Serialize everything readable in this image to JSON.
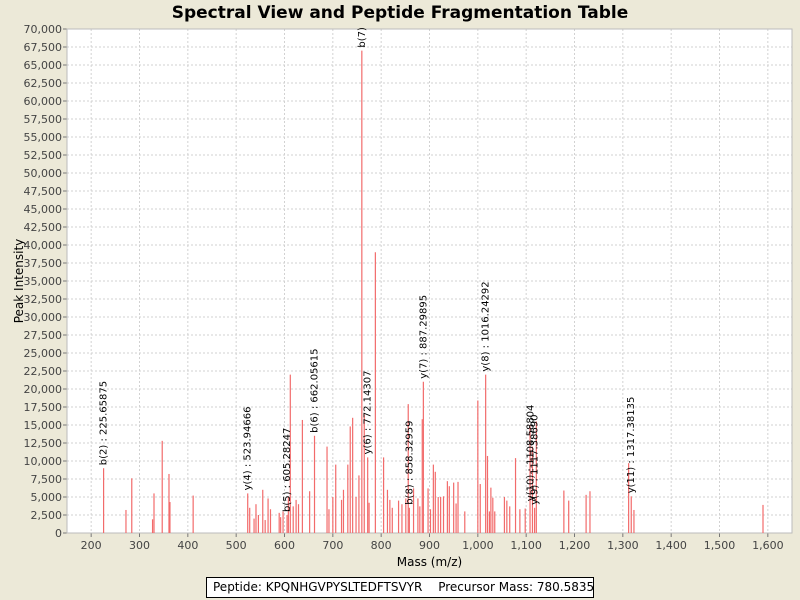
{
  "chart_data": {
    "type": "bar",
    "title": "Spectral View and Peptide Fragmentation Table",
    "xlabel": "Mass (m/z)",
    "ylabel": "Peak Intensity",
    "xlim": [
      150,
      1650
    ],
    "ylim": [
      0,
      70000
    ],
    "x_ticks": [
      200,
      300,
      400,
      500,
      600,
      700,
      800,
      900,
      1000,
      1100,
      1200,
      1300,
      1400,
      1500,
      1600
    ],
    "x_tick_labels": [
      "200",
      "300",
      "400",
      "500",
      "600",
      "700",
      "800",
      "900",
      "1,000",
      "1,100",
      "1,200",
      "1,300",
      "1,400",
      "1,500",
      "1,600"
    ],
    "y_ticks": [
      0,
      2500,
      5000,
      7500,
      10000,
      12500,
      15000,
      17500,
      20000,
      22500,
      25000,
      27500,
      30000,
      32500,
      35000,
      37500,
      40000,
      42500,
      45000,
      47500,
      50000,
      52500,
      55000,
      57500,
      60000,
      62500,
      65000,
      67500,
      70000
    ],
    "y_tick_labels": [
      "0",
      "2,500",
      "5,000",
      "7,500",
      "10,000",
      "12,500",
      "15,000",
      "17,500",
      "20,000",
      "22,500",
      "25,000",
      "27,500",
      "30,000",
      "32,500",
      "35,000",
      "37,500",
      "40,000",
      "42,500",
      "45,000",
      "47,500",
      "50,000",
      "52,500",
      "55,000",
      "57,500",
      "60,000",
      "62,500",
      "65,000",
      "67,500",
      "70,000"
    ],
    "grid": true,
    "peaks": [
      [
        225.7,
        9000
      ],
      [
        272,
        3200
      ],
      [
        284,
        7600
      ],
      [
        327,
        1900
      ],
      [
        330,
        5500
      ],
      [
        347,
        12800
      ],
      [
        361,
        8200
      ],
      [
        363,
        4300
      ],
      [
        411,
        5200
      ],
      [
        523.9,
        5500
      ],
      [
        528,
        3500
      ],
      [
        537,
        2000
      ],
      [
        541,
        4000
      ],
      [
        546,
        2500
      ],
      [
        555,
        6000
      ],
      [
        560,
        1800
      ],
      [
        566,
        4800
      ],
      [
        571,
        3300
      ],
      [
        589,
        2800
      ],
      [
        592,
        2200
      ],
      [
        597,
        3000
      ],
      [
        605.3,
        2500
      ],
      [
        608,
        5000
      ],
      [
        612,
        22000
      ],
      [
        618,
        3700
      ],
      [
        624,
        4600
      ],
      [
        629,
        4000
      ],
      [
        637,
        15700
      ],
      [
        652,
        5800
      ],
      [
        662.1,
        13500
      ],
      [
        688,
        12000
      ],
      [
        692,
        3300
      ],
      [
        700,
        5000
      ],
      [
        706,
        9500
      ],
      [
        718,
        4600
      ],
      [
        722,
        6000
      ],
      [
        731,
        9500
      ],
      [
        736,
        14800
      ],
      [
        741,
        16000
      ],
      [
        748,
        5000
      ],
      [
        754,
        8000
      ],
      [
        760,
        67000
      ],
      [
        765,
        16500
      ],
      [
        772.1,
        10500
      ],
      [
        775,
        4200
      ],
      [
        788,
        39000
      ],
      [
        805,
        10500
      ],
      [
        813,
        6000
      ],
      [
        818,
        4600
      ],
      [
        823,
        3500
      ],
      [
        836,
        4500
      ],
      [
        843,
        4000
      ],
      [
        851,
        4800
      ],
      [
        856,
        17900
      ],
      [
        858.3,
        3500
      ],
      [
        867,
        6200
      ],
      [
        876,
        4800
      ],
      [
        880,
        3700
      ],
      [
        885,
        15800
      ],
      [
        887.3,
        21000
      ],
      [
        897,
        6200
      ],
      [
        902,
        3300
      ],
      [
        908,
        9500
      ],
      [
        912,
        8500
      ],
      [
        918,
        5000
      ],
      [
        923,
        5000
      ],
      [
        929,
        5100
      ],
      [
        937,
        7200
      ],
      [
        941,
        6500
      ],
      [
        950,
        7000
      ],
      [
        955,
        4100
      ],
      [
        959,
        7100
      ],
      [
        973,
        3000
      ],
      [
        1000,
        18400
      ],
      [
        1005,
        6800
      ],
      [
        1016.2,
        22000
      ],
      [
        1020,
        10700
      ],
      [
        1024,
        3000
      ],
      [
        1027,
        6300
      ],
      [
        1031,
        4900
      ],
      [
        1035,
        3000
      ],
      [
        1055,
        5000
      ],
      [
        1060,
        4500
      ],
      [
        1066,
        3700
      ],
      [
        1078,
        10400
      ],
      [
        1087,
        3300
      ],
      [
        1098,
        3400
      ],
      [
        1108,
        15000
      ],
      [
        1113,
        12000
      ],
      [
        1117.4,
        3500
      ],
      [
        1121,
        15500
      ],
      [
        1178,
        5900
      ],
      [
        1188,
        4500
      ],
      [
        1224,
        5300
      ],
      [
        1232,
        5800
      ],
      [
        1312,
        9700
      ],
      [
        1317.4,
        5100
      ],
      [
        1323,
        3200
      ],
      [
        1590,
        3900
      ]
    ],
    "annotations": [
      {
        "label": "b(2) : 225.65875",
        "x": 225.7,
        "y": 9000
      },
      {
        "label": "y(4) : 523.94666",
        "x": 523.9,
        "y": 5500
      },
      {
        "label": "b(5) : 605.28247",
        "x": 605.3,
        "y": 2500
      },
      {
        "label": "b(6) : 662.05615",
        "x": 662.1,
        "y": 13500
      },
      {
        "label": "b(7)",
        "x": 760,
        "y": 67000
      },
      {
        "label": "y(6) : 772.14307",
        "x": 772.1,
        "y": 10500
      },
      {
        "label": "b(8) : 858.32959",
        "x": 858.3,
        "y": 3500
      },
      {
        "label": "y(7) : 887.29895",
        "x": 887.3,
        "y": 21000
      },
      {
        "label": "y(8) : 1016.24292",
        "x": 1016.2,
        "y": 22000
      },
      {
        "label": "y(10) : 1108.58804",
        "x": 1108.6,
        "y": 4000
      },
      {
        "label": "y(9) : 1117.38690",
        "x": 1117.4,
        "y": 3500
      },
      {
        "label": "y(11) : 1317.38135",
        "x": 1317.4,
        "y": 5100
      }
    ]
  },
  "info": {
    "peptide": "Peptide: KPQNHGVPYSLTEDFTSVYR",
    "precursor": "Precursor Mass: 780.5835"
  },
  "colors": {
    "peak": "#F26B6B",
    "grid": "#D2D2D2",
    "plot_bg": "#FFFFFF",
    "window_bg": "#ECE9D8"
  }
}
